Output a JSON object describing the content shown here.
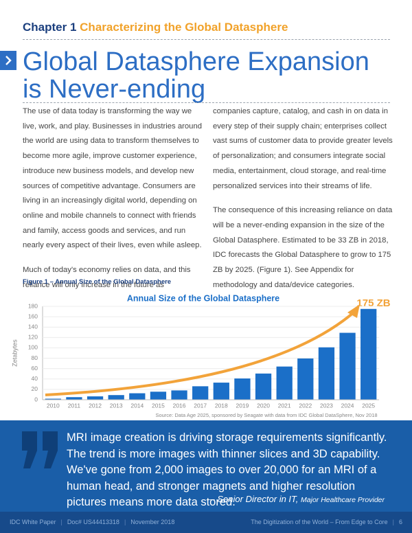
{
  "header": {
    "chapter": "Chapter 1",
    "chapter_title": "Characterizing the Global Datasphere",
    "title_lines": [
      "Global Datasphere Expansion",
      "is Never-ending"
    ]
  },
  "body": {
    "left": [
      "The use of data today is transforming the way we live, work, and play. Businesses in industries around the world are using data to transform themselves to become more agile, improve customer experience, introduce new business models, and develop new sources of competitive advantage. Consumers are living in an increasingly digital world, depending on online and mobile channels to connect with friends and family, access goods and services, and run nearly every aspect of their lives, even while asleep.",
      "Much of today's economy relies on data, and this reliance will only increase in the future as"
    ],
    "right": [
      "companies capture, catalog, and cash in on data in every step of their supply chain; enterprises collect vast sums of customer data to provide greater levels of personalization; and consumers integrate social media, entertainment, cloud storage, and real-time personalized services into their streams of life.",
      "The consequence of this increasing reliance on data will be a never-ending expansion in the size of the Global Datasphere. Estimated to be 33 ZB in 2018, IDC forecasts the Global Datasphere to grow to 175 ZB by 2025. (Figure 1). See Appendix for methodology and data/device categories."
    ]
  },
  "figure_caption": "Figure 1 – Annual Size of the Global Datasphere",
  "chart_data": {
    "type": "bar",
    "title": "Annual Size of the Global Datasphere",
    "y_label": "Zetabytes",
    "annotation": "175 ZB",
    "source": "Source: Data Age 2025, sponsored by Seagate with data from IDC Global DataSphere, Nov 2018",
    "categories": [
      "2010",
      "2011",
      "2012",
      "2013",
      "2014",
      "2015",
      "2016",
      "2017",
      "2018",
      "2019",
      "2020",
      "2021",
      "2022",
      "2023",
      "2024",
      "2025"
    ],
    "values": [
      2,
      5,
      6.5,
      9,
      12.5,
      15.5,
      18,
      26,
      33,
      41,
      50.5,
      64,
      79.5,
      101,
      129,
      175
    ],
    "color": "#1b6fc8",
    "ylim": [
      0,
      180
    ],
    "yticks": [
      0,
      20,
      40,
      60,
      80,
      100,
      120,
      140,
      160,
      180
    ],
    "grid": true
  },
  "quote": {
    "text": "MRI image creation is driving storage requirements significantly. The trend is more images with thinner slices and 3D capability. We've gone from 2,000 images to over 20,000 for an MRI of a human head, and stronger magnets and higher resolution pictures means more data stored.",
    "attribution": "– Senior Director in IT,",
    "organization": "Major Healthcare Provider"
  },
  "footer": {
    "items": [
      "IDC White Paper",
      "Doc# US44413318",
      "November 2018"
    ],
    "document_title": "The Digitization of the World – From Edge to Core",
    "page": "6"
  }
}
